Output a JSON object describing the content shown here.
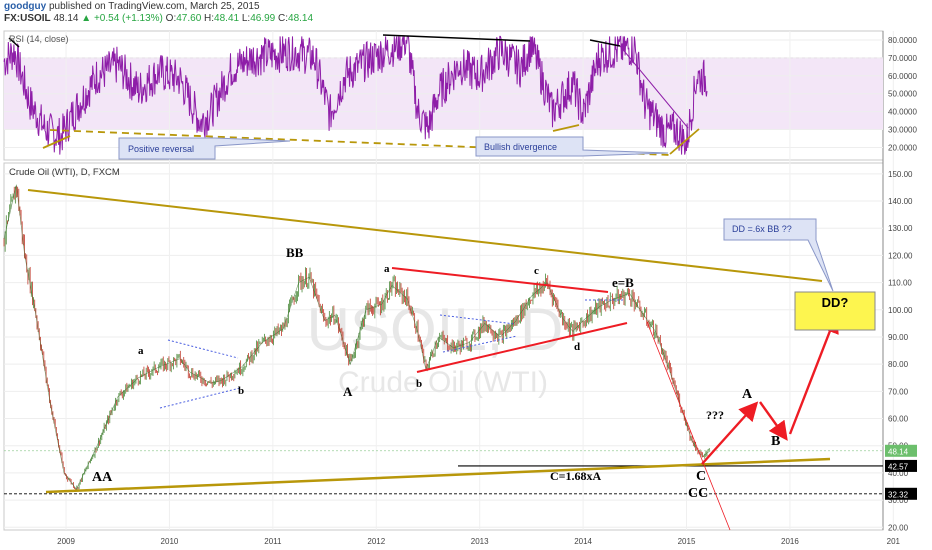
{
  "header": {
    "author": "goodguy",
    "published": "published on TradingView.com, March 25, 2015",
    "symbol": "FX:USOIL",
    "last": "48.14",
    "change": "+0.54 (+1.13%)",
    "open_label": "O:",
    "open": "47.60",
    "high_label": "H:",
    "high": "48.41",
    "low_label": "L:",
    "low": "46.99",
    "close_label": "C:",
    "close": "48.14"
  },
  "rsi_panel": {
    "title": "RSI (14, close)",
    "ticks": [
      {
        "v": 80,
        "label": "80.0000"
      },
      {
        "v": 70,
        "label": "70.0000"
      },
      {
        "v": 60,
        "label": "60.0000"
      },
      {
        "v": 50,
        "label": "50.0000"
      },
      {
        "v": 40,
        "label": "40.0000"
      },
      {
        "v": 30,
        "label": "30.0000"
      },
      {
        "v": 20,
        "label": "20.0000"
      }
    ],
    "band": [
      30,
      70
    ],
    "callouts": [
      "Positive reversal",
      "Bullish divergence"
    ]
  },
  "price_panel": {
    "title": "Crude Oil (WTI), D, FXCM",
    "watermark_symbol": "USOIL, D",
    "watermark_name": "Crude Oil (WTI)",
    "y_ticks": [
      20,
      30,
      40,
      50,
      60,
      70,
      80,
      90,
      100,
      110,
      120,
      130,
      140,
      150
    ],
    "tick_suffix": ".00",
    "marked_levels": [
      {
        "value": 48.14,
        "label": "48.14",
        "color": "#6cbf6c"
      },
      {
        "value": 42.57,
        "label": "42.57",
        "color": "#000000"
      },
      {
        "value": 32.32,
        "label": "32.32",
        "color": "#000000"
      }
    ],
    "x_ticks": [
      "2009",
      "2010",
      "2011",
      "2012",
      "2013",
      "2014",
      "2015",
      "2016",
      "201"
    ],
    "wave_labels": [
      "AA",
      "a",
      "b",
      "BB",
      "A",
      "a",
      "b",
      "c",
      "d",
      "e=B",
      "C",
      "CC",
      "C=1.68xA",
      "???",
      "A",
      "B"
    ],
    "projection_box": "DD?",
    "projection_note": "DD =.6x BB  ??"
  },
  "colors": {
    "rsi_line": "#8e1ea8",
    "rsi_band": "#f3e6f7",
    "candle_up": "#4b8a3a",
    "candle_down": "#c0392b",
    "trendline_gold": "#b8970a",
    "wave_red": "#ee1c24",
    "box_yellow": "#fdf54f",
    "callout_bg": "#dde3f5"
  },
  "chart_data": {
    "type": "line",
    "title": "Crude Oil (WTI), D, FXCM",
    "xlabel": "",
    "ylabel": "",
    "ylim": [
      19,
      154
    ],
    "x_range": [
      2008.4,
      2016.9
    ],
    "grid": true,
    "series": [
      {
        "name": "Crude Oil (WTI)",
        "x": [
          2008.4,
          2008.52,
          2008.6,
          2008.7,
          2008.85,
          2008.98,
          2009.1,
          2009.3,
          2009.5,
          2009.7,
          2009.9,
          2010.1,
          2010.2,
          2010.4,
          2010.5,
          2010.7,
          2010.9,
          2011.1,
          2011.25,
          2011.35,
          2011.5,
          2011.6,
          2011.75,
          2011.9,
          2012.05,
          2012.15,
          2012.3,
          2012.4,
          2012.48,
          2012.6,
          2012.75,
          2012.9,
          2013.05,
          2013.2,
          2013.35,
          2013.5,
          2013.65,
          2013.8,
          2013.9,
          2014.0,
          2014.15,
          2014.3,
          2014.45,
          2014.55,
          2014.7,
          2014.85,
          2014.95,
          2015.05,
          2015.15,
          2015.23
        ],
        "values": [
          126,
          146,
          120,
          100,
          65,
          40,
          34,
          50,
          68,
          75,
          79,
          82,
          77,
          73,
          74,
          79,
          88,
          93,
          110,
          112,
          96,
          98,
          80,
          100,
          102,
          109,
          104,
          92,
          78,
          90,
          86,
          88,
          95,
          90,
          96,
          105,
          110,
          97,
          92,
          96,
          101,
          104,
          106,
          100,
          92,
          76,
          64,
          52,
          46,
          48.14
        ]
      },
      {
        "name": "RSI (14, close)",
        "x": [
          2008.4,
          2008.5,
          2008.65,
          2008.8,
          2008.95,
          2009.1,
          2009.3,
          2009.5,
          2009.7,
          2009.9,
          2010.1,
          2010.3,
          2010.4,
          2010.6,
          2010.8,
          2011.0,
          2011.2,
          2011.4,
          2011.55,
          2011.7,
          2011.9,
          2012.1,
          2012.3,
          2012.4,
          2012.5,
          2012.6,
          2012.8,
          2013.0,
          2013.2,
          2013.4,
          2013.5,
          2013.7,
          2013.9,
          2014.0,
          2014.15,
          2014.3,
          2014.5,
          2014.6,
          2014.8,
          2014.9,
          2015.0,
          2015.1,
          2015.2
        ],
        "values": [
          68,
          74,
          45,
          30,
          26,
          42,
          60,
          66,
          52,
          62,
          58,
          34,
          40,
          64,
          70,
          72,
          74,
          70,
          38,
          60,
          68,
          74,
          80,
          40,
          30,
          50,
          66,
          60,
          74,
          64,
          78,
          40,
          56,
          38,
          70,
          74,
          76,
          44,
          28,
          30,
          22,
          60,
          58
        ]
      }
    ],
    "annotations": [
      "AA",
      "a",
      "b",
      "BB",
      "A",
      "a",
      "b",
      "c",
      "d",
      "e=B",
      "C",
      "CC",
      "C=1.68xA",
      "???",
      "A",
      "B",
      "DD?",
      "DD =.6x BB  ??",
      "Positive reversal",
      "Bullish divergence"
    ]
  }
}
